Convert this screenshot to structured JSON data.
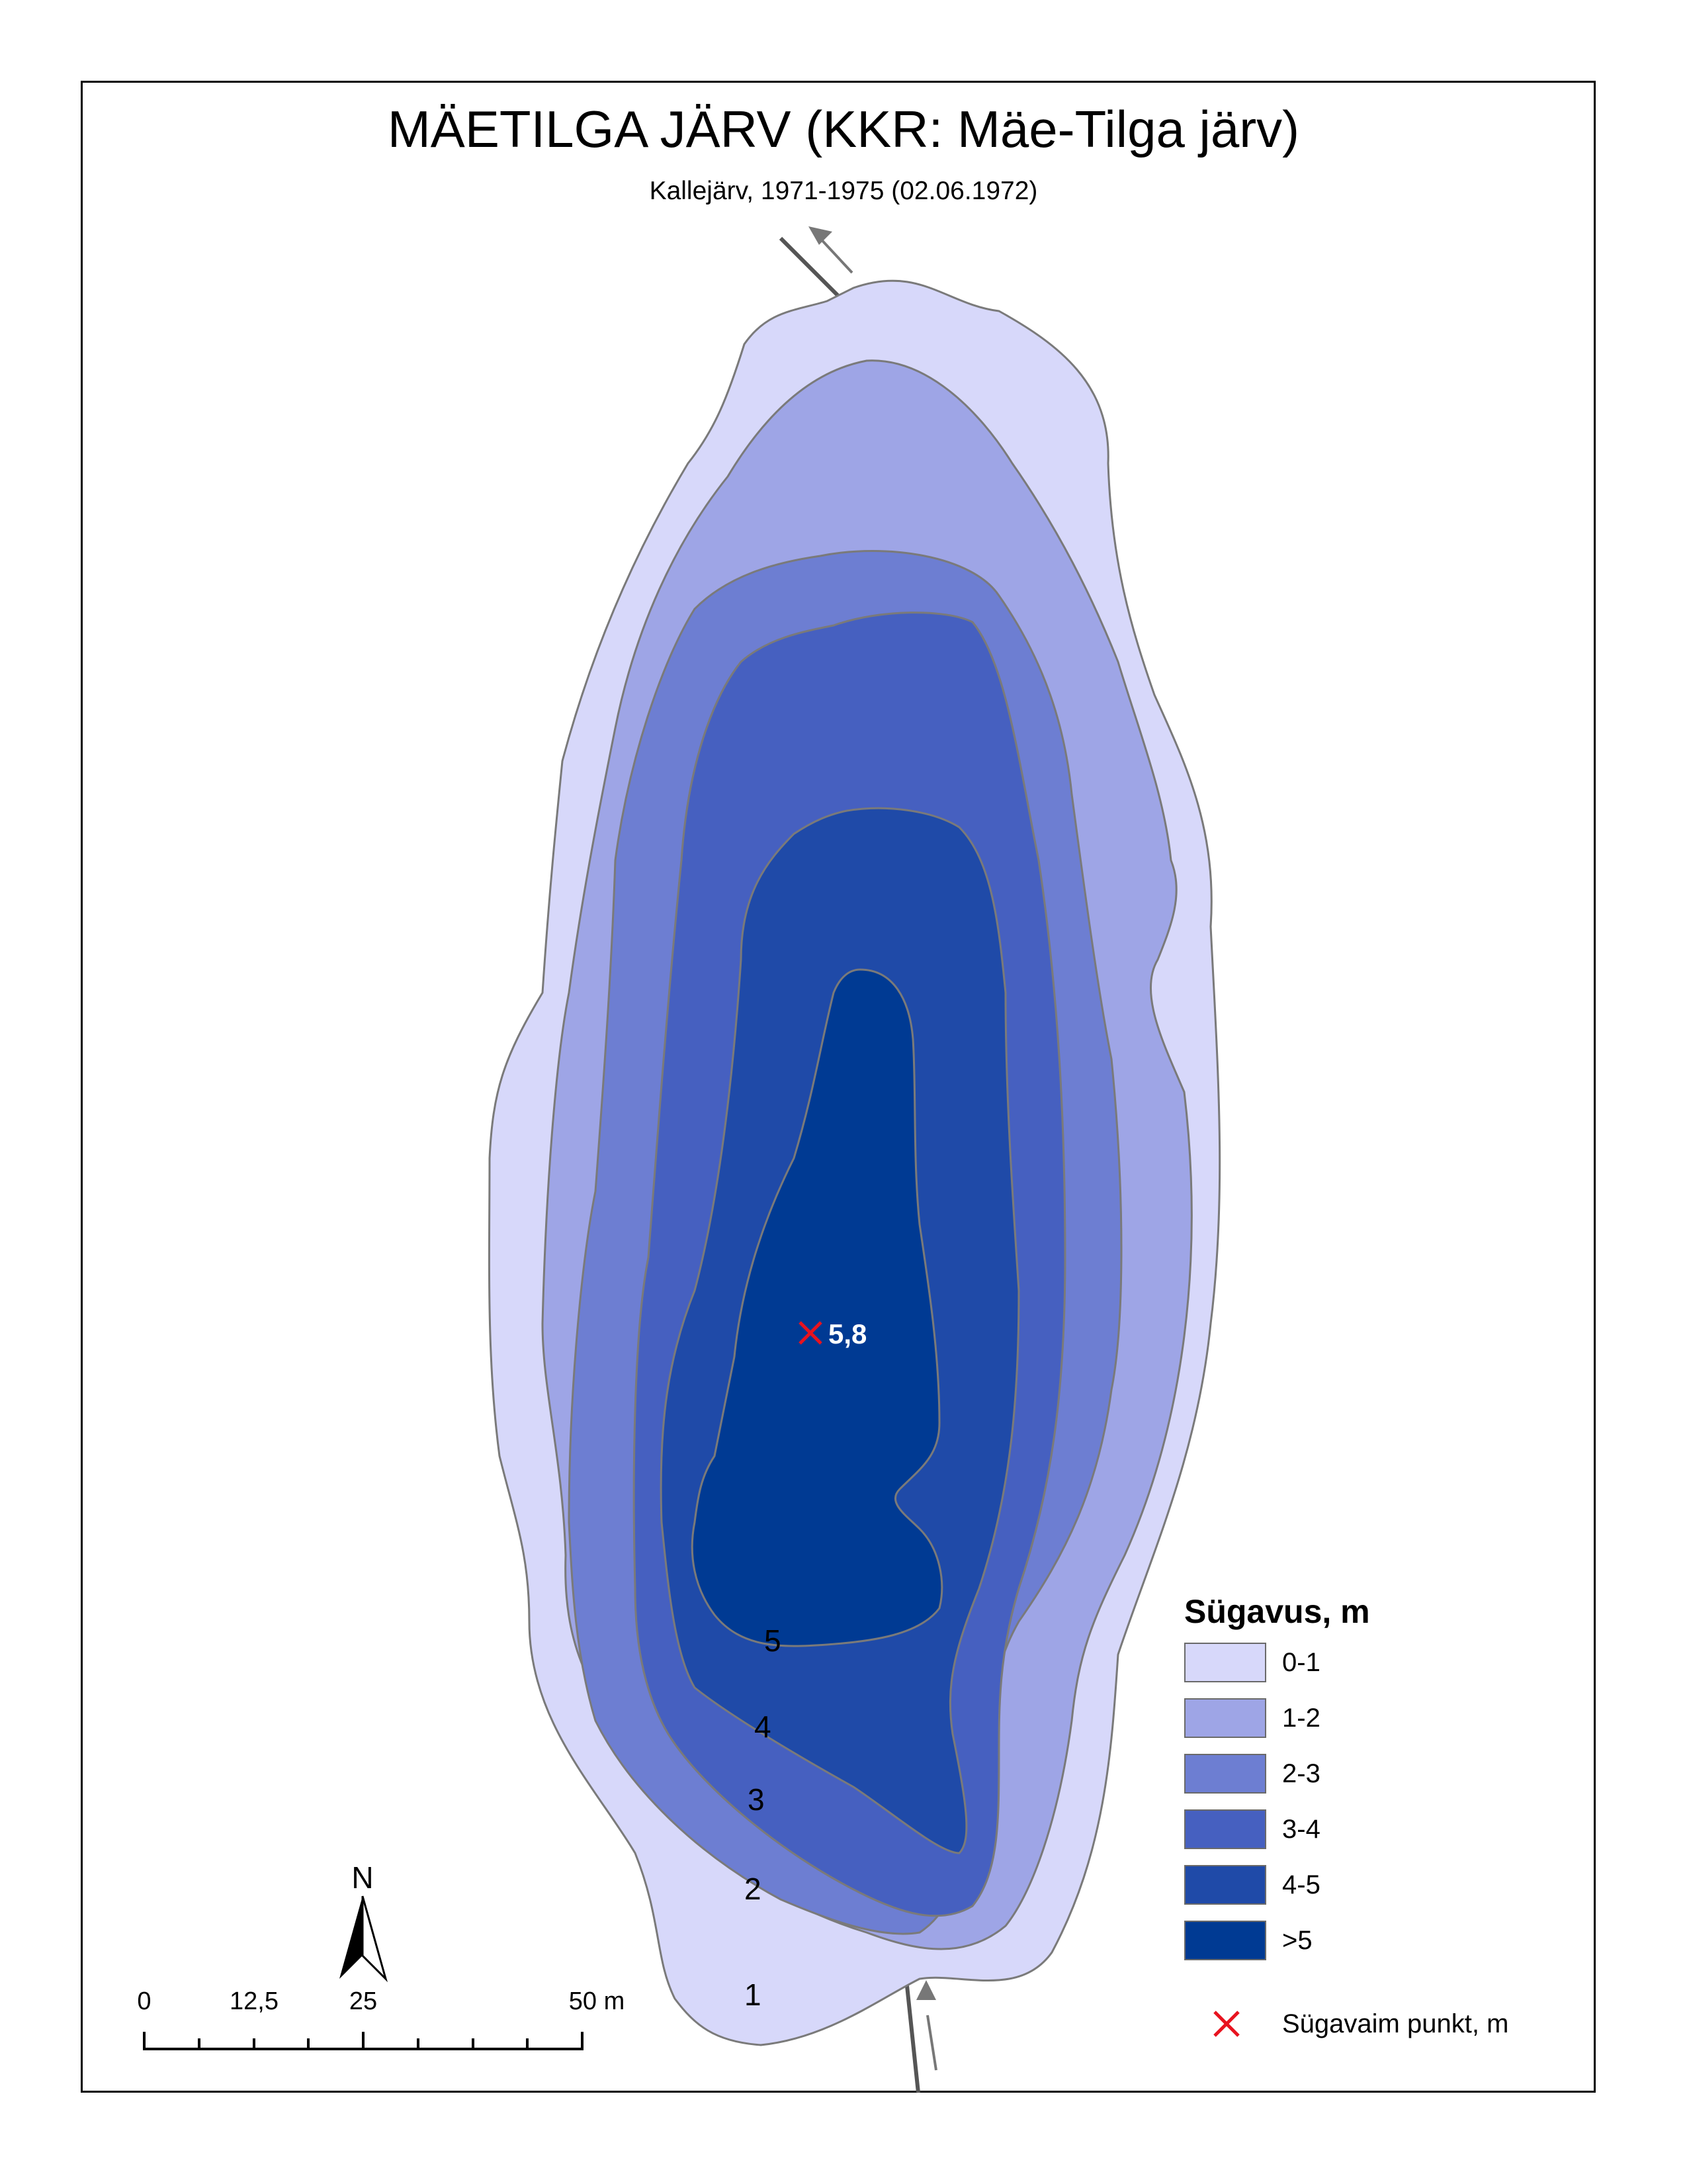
{
  "title": "MÄETILGA JÄRV (KKR: Mäe-Tilga järv)",
  "subtitle": "Kallejärv, 1971-1975 (02.06.1972)",
  "deepest_point": {
    "label": "5,8",
    "color": "#e8131f"
  },
  "contour_labels": [
    "5",
    "4",
    "3",
    "2",
    "1"
  ],
  "legend": {
    "title": "Sügavus, m",
    "classes": [
      {
        "label": "0-1",
        "color": "#d7d8fa"
      },
      {
        "label": "1-2",
        "color": "#9ea5e6"
      },
      {
        "label": "2-3",
        "color": "#6d7ed2"
      },
      {
        "label": "3-4",
        "color": "#4660c0"
      },
      {
        "label": "4-5",
        "color": "#1f4aa8"
      },
      {
        "label": ">5",
        "color": "#003a93"
      }
    ],
    "marker": {
      "label": "Sügavaim punkt, m",
      "icon": "red-x-icon",
      "color": "#e8131f"
    }
  },
  "north_arrow": {
    "label": "N"
  },
  "scale_bar": {
    "labels": [
      "0",
      "12,5",
      "25",
      "50 m"
    ]
  },
  "streams": {
    "inflow_icon": "arrow-up-icon",
    "outflow_icon": "arrow-up-left-icon"
  }
}
